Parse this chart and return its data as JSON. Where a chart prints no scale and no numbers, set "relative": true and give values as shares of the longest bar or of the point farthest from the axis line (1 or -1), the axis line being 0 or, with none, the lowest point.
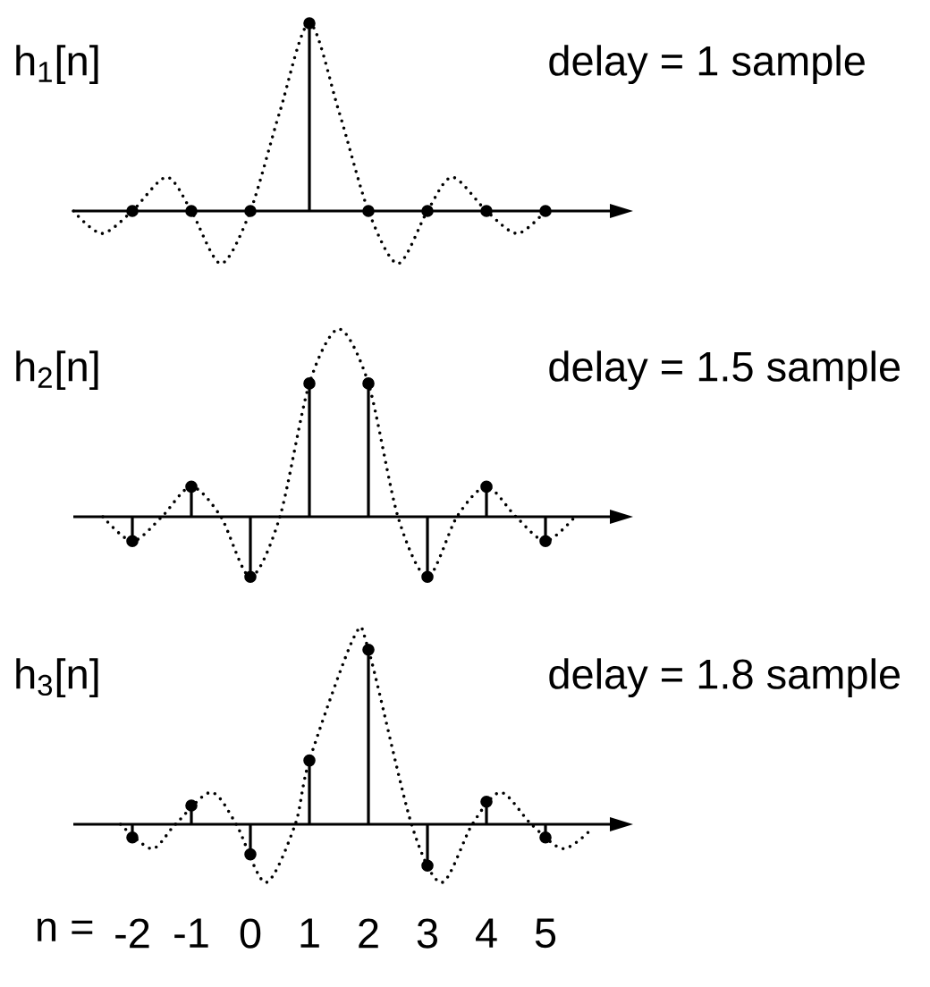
{
  "chart_data": [
    {
      "type": "lollipop",
      "title": "h$_{1}$[n]",
      "subtitle": "delay = 1 sample",
      "relative": true,
      "x": [
        -2,
        -1,
        0,
        1,
        2,
        3,
        4,
        5
      ],
      "xlim": [
        -3,
        6.1
      ],
      "tick_labels": false,
      "series": [
        {
          "color": "#000000",
          "marker": "circle",
          "values": [
            0,
            0,
            0,
            1,
            0,
            0,
            0,
            0
          ]
        },
        {
          "type": "line",
          "color": "#000000",
          "line_style": "dotted",
          "marker": "none",
          "x": [
            -3,
            -2.52,
            -2,
            -1.42,
            -1,
            -0.5,
            0,
            0.5,
            1,
            1.5,
            2,
            2.5,
            3,
            3.42,
            4,
            4.52,
            5
          ],
          "values": [
            0,
            -0.12,
            0,
            0.18,
            0,
            -0.28,
            0,
            0.53,
            1,
            0.53,
            0,
            -0.28,
            0,
            0.18,
            0,
            -0.12,
            0
          ]
        }
      ]
    },
    {
      "type": "lollipop",
      "title": "h$_{2}$[n]",
      "subtitle": "delay = 1.5 sample",
      "relative": true,
      "x": [
        -2,
        -1,
        0,
        1,
        2,
        3,
        4,
        5
      ],
      "xlim": [
        -3,
        6.1
      ],
      "tick_labels": false,
      "series": [
        {
          "color": "#000000",
          "marker": "circle",
          "values": [
            -0.13,
            0.16,
            -0.32,
            0.71,
            0.71,
            -0.32,
            0.16,
            -0.13
          ]
        },
        {
          "type": "line",
          "color": "#000000",
          "line_style": "dotted",
          "marker": "none",
          "x": [
            -2.5,
            -2,
            -1.5,
            -1,
            -0.5,
            0,
            0.5,
            1,
            1.5,
            2,
            2.5,
            3,
            3.5,
            4,
            4.5,
            5,
            5.5
          ],
          "values": [
            0,
            -0.13,
            0,
            0.16,
            0,
            -0.32,
            0,
            0.71,
            1,
            0.71,
            0,
            -0.32,
            0,
            0.16,
            0,
            -0.13,
            0
          ]
        }
      ]
    },
    {
      "type": "lollipop",
      "title": "h$_{3}$[n]",
      "subtitle": "delay = 1.8 sample",
      "relative": true,
      "x": [
        -2,
        -1,
        0,
        1,
        2,
        3,
        4,
        5
      ],
      "xlim": [
        -3,
        6.1
      ],
      "xticks": [
        -2,
        -1,
        0,
        1,
        2,
        3,
        4,
        5
      ],
      "xlabel": "n =",
      "tick_labels": "x",
      "series": [
        {
          "color": "#000000",
          "marker": "circle",
          "values": [
            -0.07,
            0.1,
            -0.16,
            0.34,
            0.93,
            -0.22,
            0.12,
            -0.07
          ]
        },
        {
          "type": "line",
          "color": "#000000",
          "line_style": "dotted",
          "marker": "none",
          "x": [
            -2.2,
            -1.67,
            -1.27,
            -0.67,
            -0.24,
            0.26,
            0.76,
            1,
            1.76,
            2,
            2.73,
            3.24,
            3.76,
            4.24,
            4.76,
            5.3,
            5.8
          ],
          "values": [
            0,
            -0.13,
            0,
            0.17,
            0,
            -0.31,
            0,
            0.34,
            1,
            0.93,
            0,
            -0.31,
            0,
            0.17,
            0,
            -0.13,
            -0.02
          ]
        }
      ]
    }
  ]
}
